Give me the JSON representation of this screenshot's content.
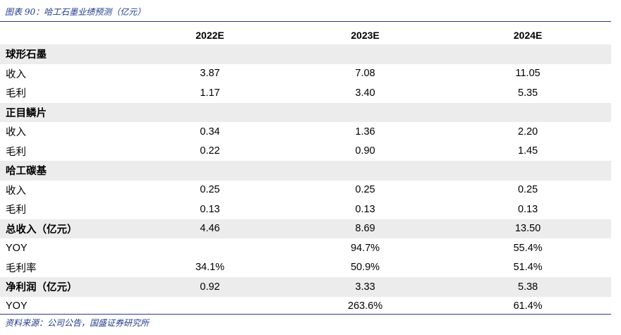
{
  "caption": "图表 90：哈工石墨业绩预测（亿元）",
  "source": "资料来源：公司公告，国盛证券研究所",
  "columns": [
    "",
    "2022E",
    "2023E",
    "2024E"
  ],
  "rows": [
    {
      "label": "球形石墨",
      "values": [
        "",
        "",
        ""
      ],
      "shade": true,
      "bold": true
    },
    {
      "label": "收入",
      "values": [
        "3.87",
        "7.08",
        "11.05"
      ],
      "shade": false,
      "bold": false
    },
    {
      "label": "毛利",
      "values": [
        "1.17",
        "3.40",
        "5.35"
      ],
      "shade": false,
      "bold": false
    },
    {
      "label": "正目鳞片",
      "values": [
        "",
        "",
        ""
      ],
      "shade": true,
      "bold": true
    },
    {
      "label": "收入",
      "values": [
        "0.34",
        "1.36",
        "2.20"
      ],
      "shade": false,
      "bold": false
    },
    {
      "label": "毛利",
      "values": [
        "0.22",
        "0.90",
        "1.45"
      ],
      "shade": false,
      "bold": false
    },
    {
      "label": "哈工碳基",
      "values": [
        "",
        "",
        ""
      ],
      "shade": true,
      "bold": true
    },
    {
      "label": "收入",
      "values": [
        "0.25",
        "0.25",
        "0.25"
      ],
      "shade": false,
      "bold": false
    },
    {
      "label": "毛利",
      "values": [
        "0.13",
        "0.13",
        "0.13"
      ],
      "shade": false,
      "bold": false
    },
    {
      "label": "总收入（亿元）",
      "values": [
        "4.46",
        "8.69",
        "13.50"
      ],
      "shade": true,
      "bold": true
    },
    {
      "label": "YOY",
      "values": [
        "",
        "94.7%",
        "55.4%"
      ],
      "shade": false,
      "bold": false
    },
    {
      "label": "毛利率",
      "values": [
        "34.1%",
        "50.9%",
        "51.4%"
      ],
      "shade": false,
      "bold": false
    },
    {
      "label": "净利润（亿元）",
      "values": [
        "0.92",
        "3.33",
        "5.38"
      ],
      "shade": true,
      "bold": true
    },
    {
      "label": "YOY",
      "values": [
        "",
        "263.6%",
        "61.4%"
      ],
      "shade": false,
      "bold": false
    }
  ]
}
